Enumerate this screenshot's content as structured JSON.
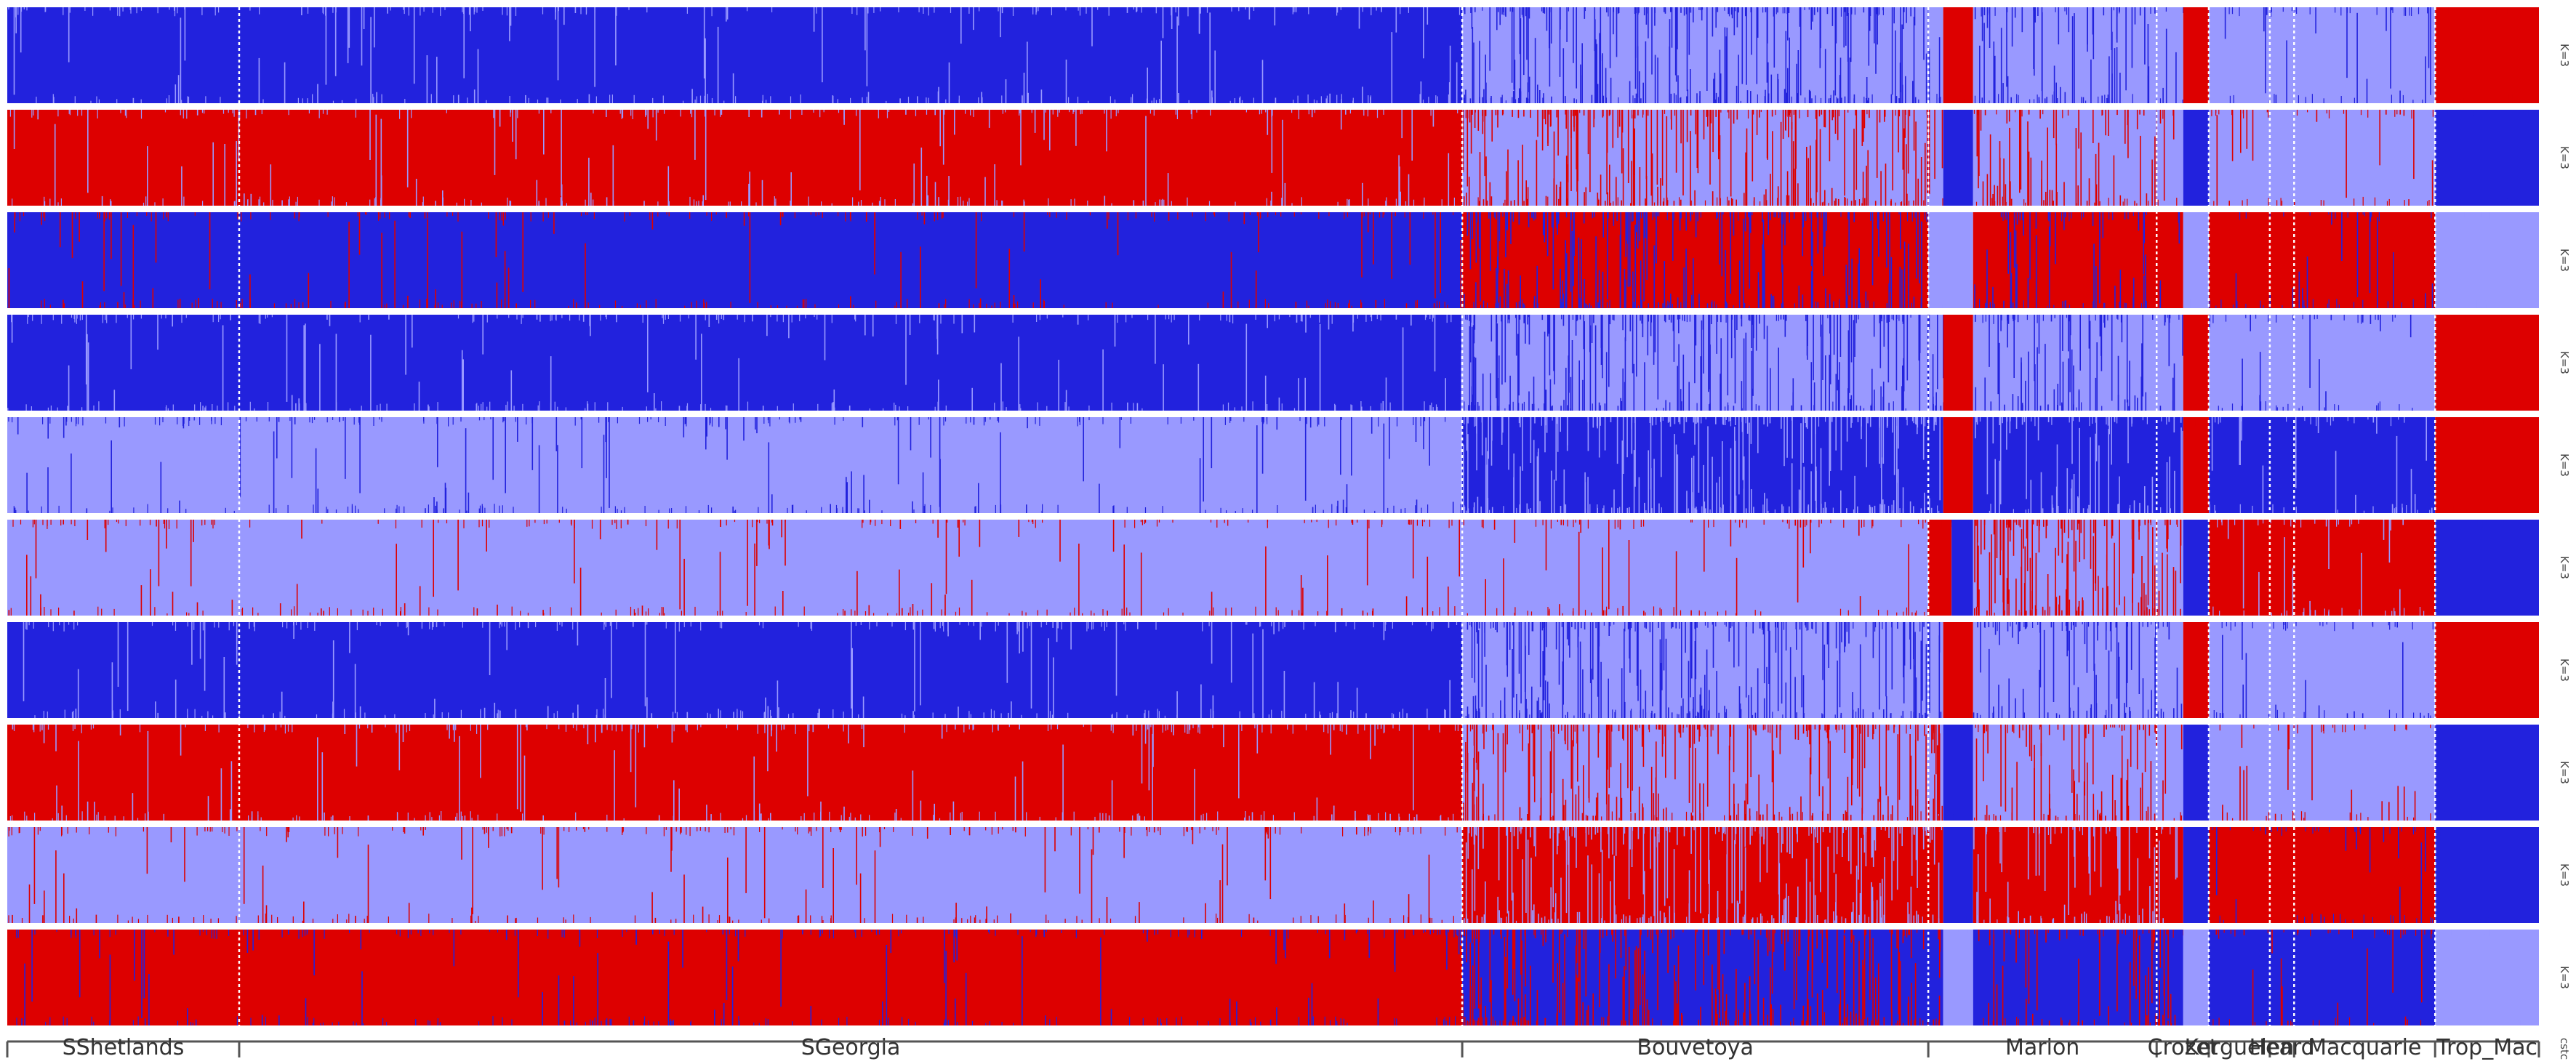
{
  "chart_data": {
    "type": "bar",
    "subtype": "stacked-admixture-structure",
    "title": "",
    "colors": {
      "dark_blue": "#2222dd",
      "red": "#dd0000",
      "light_blue": "#9999ff"
    },
    "populations": [
      {
        "name": "SShetlands",
        "start": 0,
        "end": 0.0916
      },
      {
        "name": "SGeorgia",
        "start": 0.0916,
        "end": 0.5747
      },
      {
        "name": "Bouvetoya",
        "start": 0.5747,
        "end": 0.7588
      },
      {
        "name": "Marion",
        "start": 0.7588,
        "end": 0.849
      },
      {
        "name": "Crozet",
        "start": 0.849,
        "end": 0.8696
      },
      {
        "name": "Kerguelen",
        "start": 0.8696,
        "end": 0.8937
      },
      {
        "name": "Heard",
        "start": 0.8937,
        "end": 0.9033
      },
      {
        "name": "Macquarie",
        "start": 0.9033,
        "end": 0.959
      },
      {
        "name": "Trop_Mac",
        "start": 0.959,
        "end": 1.0
      }
    ],
    "rows": [
      {
        "label": "K=3",
        "segments": [
          {
            "from": 0,
            "to": 0.5747,
            "color": "dark_blue",
            "noise": "light_blue",
            "density": 0.06
          },
          {
            "from": 0.5747,
            "to": 0.7588,
            "color": "light_blue",
            "noise": "dark_blue",
            "density": 0.45
          },
          {
            "from": 0.7588,
            "to": 0.7647,
            "color": "light_blue",
            "noise": "dark_blue",
            "density": 0.2
          },
          {
            "from": 0.7647,
            "to": 0.7765,
            "color": "red",
            "noise": "red",
            "density": 0
          },
          {
            "from": 0.7765,
            "to": 0.849,
            "color": "light_blue",
            "noise": "dark_blue",
            "density": 0.3
          },
          {
            "from": 0.849,
            "to": 0.8595,
            "color": "light_blue",
            "noise": "dark_blue",
            "density": 0.1
          },
          {
            "from": 0.8595,
            "to": 0.8696,
            "color": "red",
            "noise": "red",
            "density": 0
          },
          {
            "from": 0.8696,
            "to": 0.959,
            "color": "light_blue",
            "noise": "dark_blue",
            "density": 0.06
          },
          {
            "from": 0.959,
            "to": 1.0,
            "color": "red",
            "noise": "red",
            "density": 0
          }
        ]
      },
      {
        "label": "K=3",
        "segments": [
          {
            "from": 0,
            "to": 0.5747,
            "color": "red",
            "noise": "light_blue",
            "density": 0.06
          },
          {
            "from": 0.5747,
            "to": 0.7588,
            "color": "light_blue",
            "noise": "red",
            "density": 0.45
          },
          {
            "from": 0.7588,
            "to": 0.7647,
            "color": "light_blue",
            "noise": "red",
            "density": 0.2
          },
          {
            "from": 0.7647,
            "to": 0.7765,
            "color": "dark_blue",
            "noise": "dark_blue",
            "density": 0
          },
          {
            "from": 0.7765,
            "to": 0.849,
            "color": "light_blue",
            "noise": "red",
            "density": 0.3
          },
          {
            "from": 0.849,
            "to": 0.8595,
            "color": "light_blue",
            "noise": "red",
            "density": 0.1
          },
          {
            "from": 0.8595,
            "to": 0.8696,
            "color": "dark_blue",
            "noise": "dark_blue",
            "density": 0
          },
          {
            "from": 0.8696,
            "to": 0.959,
            "color": "light_blue",
            "noise": "red",
            "density": 0.06
          },
          {
            "from": 0.959,
            "to": 1.0,
            "color": "dark_blue",
            "noise": "dark_blue",
            "density": 0
          }
        ]
      },
      {
        "label": "K=3",
        "segments": [
          {
            "from": 0,
            "to": 0.5747,
            "color": "dark_blue",
            "noise": "red",
            "density": 0.05
          },
          {
            "from": 0.5747,
            "to": 0.7588,
            "color": "red",
            "noise": "dark_blue",
            "density": 0.4
          },
          {
            "from": 0.7588,
            "to": 0.7765,
            "color": "light_blue",
            "noise": "light_blue",
            "density": 0
          },
          {
            "from": 0.7765,
            "to": 0.8595,
            "color": "red",
            "noise": "dark_blue",
            "density": 0.2
          },
          {
            "from": 0.8595,
            "to": 0.8696,
            "color": "light_blue",
            "noise": "light_blue",
            "density": 0
          },
          {
            "from": 0.8696,
            "to": 0.959,
            "color": "red",
            "noise": "dark_blue",
            "density": 0.05
          },
          {
            "from": 0.959,
            "to": 1.0,
            "color": "light_blue",
            "noise": "light_blue",
            "density": 0
          }
        ]
      },
      {
        "label": "K=3",
        "segments": [
          {
            "from": 0,
            "to": 0.5747,
            "color": "dark_blue",
            "noise": "light_blue",
            "density": 0.06
          },
          {
            "from": 0.5747,
            "to": 0.7647,
            "color": "light_blue",
            "noise": "dark_blue",
            "density": 0.4
          },
          {
            "from": 0.7647,
            "to": 0.7765,
            "color": "red",
            "noise": "red",
            "density": 0
          },
          {
            "from": 0.7765,
            "to": 0.8595,
            "color": "light_blue",
            "noise": "dark_blue",
            "density": 0.3
          },
          {
            "from": 0.8595,
            "to": 0.8696,
            "color": "red",
            "noise": "red",
            "density": 0
          },
          {
            "from": 0.8696,
            "to": 0.959,
            "color": "light_blue",
            "noise": "dark_blue",
            "density": 0.06
          },
          {
            "from": 0.959,
            "to": 1.0,
            "color": "red",
            "noise": "red",
            "density": 0
          }
        ]
      },
      {
        "label": "K=3",
        "segments": [
          {
            "from": 0,
            "to": 0.5747,
            "color": "light_blue",
            "noise": "dark_blue",
            "density": 0.06
          },
          {
            "from": 0.5747,
            "to": 0.7647,
            "color": "dark_blue",
            "noise": "light_blue",
            "density": 0.4
          },
          {
            "from": 0.7647,
            "to": 0.7765,
            "color": "red",
            "noise": "red",
            "density": 0
          },
          {
            "from": 0.7765,
            "to": 0.8595,
            "color": "dark_blue",
            "noise": "light_blue",
            "density": 0.25
          },
          {
            "from": 0.8595,
            "to": 0.8696,
            "color": "red",
            "noise": "red",
            "density": 0
          },
          {
            "from": 0.8696,
            "to": 0.959,
            "color": "dark_blue",
            "noise": "light_blue",
            "density": 0.06
          },
          {
            "from": 0.959,
            "to": 1.0,
            "color": "red",
            "noise": "red",
            "density": 0
          }
        ]
      },
      {
        "label": "K=3",
        "segments": [
          {
            "from": 0,
            "to": 0.7588,
            "color": "light_blue",
            "noise": "red",
            "density": 0.05
          },
          {
            "from": 0.7588,
            "to": 0.768,
            "color": "red",
            "noise": "red",
            "density": 0
          },
          {
            "from": 0.768,
            "to": 0.7765,
            "color": "dark_blue",
            "noise": "dark_blue",
            "density": 0
          },
          {
            "from": 0.7765,
            "to": 0.8595,
            "color": "light_blue",
            "noise": "red",
            "density": 0.55
          },
          {
            "from": 0.8595,
            "to": 0.8696,
            "color": "dark_blue",
            "noise": "dark_blue",
            "density": 0
          },
          {
            "from": 0.8696,
            "to": 0.959,
            "color": "red",
            "noise": "light_blue",
            "density": 0.06
          },
          {
            "from": 0.959,
            "to": 1.0,
            "color": "dark_blue",
            "noise": "dark_blue",
            "density": 0
          }
        ]
      },
      {
        "label": "K=3",
        "segments": [
          {
            "from": 0,
            "to": 0.5747,
            "color": "dark_blue",
            "noise": "light_blue",
            "density": 0.06
          },
          {
            "from": 0.5747,
            "to": 0.7647,
            "color": "light_blue",
            "noise": "dark_blue",
            "density": 0.4
          },
          {
            "from": 0.7647,
            "to": 0.7765,
            "color": "red",
            "noise": "red",
            "density": 0
          },
          {
            "from": 0.7765,
            "to": 0.8595,
            "color": "light_blue",
            "noise": "dark_blue",
            "density": 0.3
          },
          {
            "from": 0.8595,
            "to": 0.8696,
            "color": "red",
            "noise": "red",
            "density": 0
          },
          {
            "from": 0.8696,
            "to": 0.959,
            "color": "light_blue",
            "noise": "dark_blue",
            "density": 0.06
          },
          {
            "from": 0.959,
            "to": 1.0,
            "color": "red",
            "noise": "red",
            "density": 0
          }
        ]
      },
      {
        "label": "K=3",
        "segments": [
          {
            "from": 0,
            "to": 0.5747,
            "color": "red",
            "noise": "light_blue",
            "density": 0.06
          },
          {
            "from": 0.5747,
            "to": 0.7647,
            "color": "light_blue",
            "noise": "red",
            "density": 0.4
          },
          {
            "from": 0.7647,
            "to": 0.7765,
            "color": "dark_blue",
            "noise": "dark_blue",
            "density": 0
          },
          {
            "from": 0.7765,
            "to": 0.8595,
            "color": "light_blue",
            "noise": "red",
            "density": 0.3
          },
          {
            "from": 0.8595,
            "to": 0.8696,
            "color": "dark_blue",
            "noise": "dark_blue",
            "density": 0
          },
          {
            "from": 0.8696,
            "to": 0.959,
            "color": "light_blue",
            "noise": "red",
            "density": 0.06
          },
          {
            "from": 0.959,
            "to": 1.0,
            "color": "dark_blue",
            "noise": "dark_blue",
            "density": 0
          }
        ]
      },
      {
        "label": "K=3",
        "segments": [
          {
            "from": 0,
            "to": 0.5747,
            "color": "light_blue",
            "noise": "red",
            "density": 0.05
          },
          {
            "from": 0.5747,
            "to": 0.7647,
            "color": "red",
            "noise": "light_blue",
            "density": 0.4
          },
          {
            "from": 0.7647,
            "to": 0.7765,
            "color": "dark_blue",
            "noise": "dark_blue",
            "density": 0
          },
          {
            "from": 0.7765,
            "to": 0.8595,
            "color": "red",
            "noise": "light_blue",
            "density": 0.2
          },
          {
            "from": 0.8595,
            "to": 0.8696,
            "color": "dark_blue",
            "noise": "dark_blue",
            "density": 0
          },
          {
            "from": 0.8696,
            "to": 0.959,
            "color": "red",
            "noise": "dark_blue",
            "density": 0.06
          },
          {
            "from": 0.959,
            "to": 1.0,
            "color": "dark_blue",
            "noise": "dark_blue",
            "density": 0
          }
        ]
      },
      {
        "label": "K=3",
        "segments": [
          {
            "from": 0,
            "to": 0.5747,
            "color": "red",
            "noise": "dark_blue",
            "density": 0.05
          },
          {
            "from": 0.5747,
            "to": 0.7647,
            "color": "dark_blue",
            "noise": "red",
            "density": 0.4
          },
          {
            "from": 0.7647,
            "to": 0.7765,
            "color": "light_blue",
            "noise": "light_blue",
            "density": 0
          },
          {
            "from": 0.7765,
            "to": 0.8595,
            "color": "dark_blue",
            "noise": "red",
            "density": 0.2
          },
          {
            "from": 0.8595,
            "to": 0.8696,
            "color": "light_blue",
            "noise": "light_blue",
            "density": 0
          },
          {
            "from": 0.8696,
            "to": 0.959,
            "color": "dark_blue",
            "noise": "red",
            "density": 0.06
          },
          {
            "from": 0.959,
            "to": 1.0,
            "color": "light_blue",
            "noise": "light_blue",
            "density": 0
          }
        ]
      }
    ],
    "bottom_label": "cstc"
  }
}
